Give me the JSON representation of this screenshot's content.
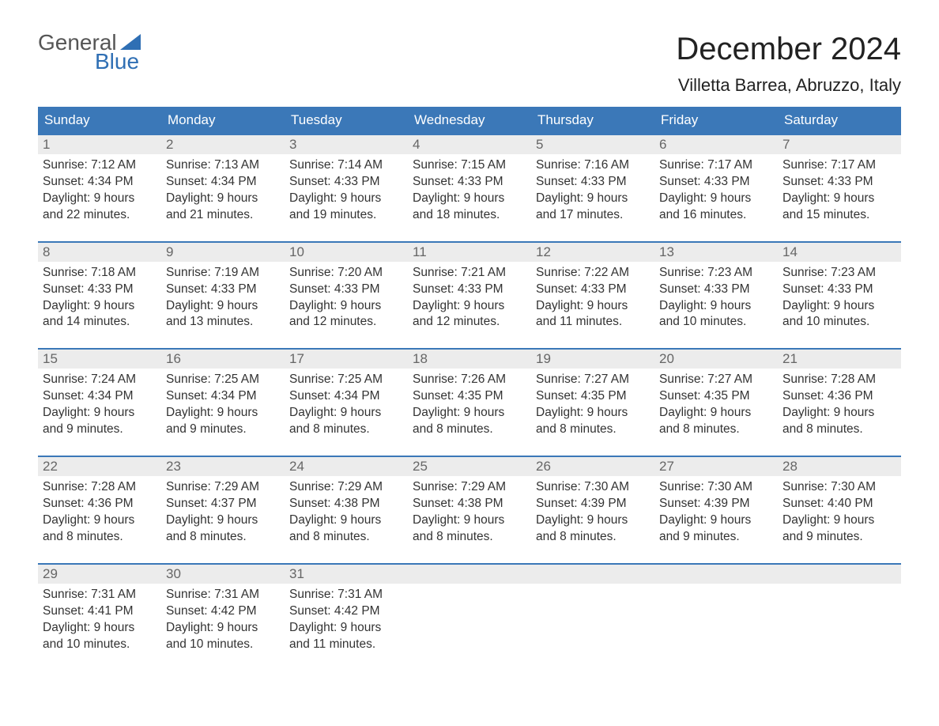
{
  "logo": {
    "line1": "General",
    "line2": "Blue",
    "accent_color": "#2f6fb4",
    "text_color": "#555555"
  },
  "header": {
    "month_title": "December 2024",
    "location": "Villetta Barrea, Abruzzo, Italy"
  },
  "styling": {
    "header_bg": "#3b78b8",
    "header_text": "#ffffff",
    "daynum_bg": "#ececec",
    "daynum_color": "#666666",
    "body_text": "#333333",
    "week_border_color": "#3b78b8",
    "page_bg": "#ffffff",
    "title_fontsize": 40,
    "location_fontsize": 22,
    "dow_fontsize": 17,
    "body_fontsize": 15.5
  },
  "days_of_week": [
    "Sunday",
    "Monday",
    "Tuesday",
    "Wednesday",
    "Thursday",
    "Friday",
    "Saturday"
  ],
  "weeks": [
    [
      {
        "n": "1",
        "sunrise": "Sunrise: 7:12 AM",
        "sunset": "Sunset: 4:34 PM",
        "daylight1": "Daylight: 9 hours",
        "daylight2": "and 22 minutes."
      },
      {
        "n": "2",
        "sunrise": "Sunrise: 7:13 AM",
        "sunset": "Sunset: 4:34 PM",
        "daylight1": "Daylight: 9 hours",
        "daylight2": "and 21 minutes."
      },
      {
        "n": "3",
        "sunrise": "Sunrise: 7:14 AM",
        "sunset": "Sunset: 4:33 PM",
        "daylight1": "Daylight: 9 hours",
        "daylight2": "and 19 minutes."
      },
      {
        "n": "4",
        "sunrise": "Sunrise: 7:15 AM",
        "sunset": "Sunset: 4:33 PM",
        "daylight1": "Daylight: 9 hours",
        "daylight2": "and 18 minutes."
      },
      {
        "n": "5",
        "sunrise": "Sunrise: 7:16 AM",
        "sunset": "Sunset: 4:33 PM",
        "daylight1": "Daylight: 9 hours",
        "daylight2": "and 17 minutes."
      },
      {
        "n": "6",
        "sunrise": "Sunrise: 7:17 AM",
        "sunset": "Sunset: 4:33 PM",
        "daylight1": "Daylight: 9 hours",
        "daylight2": "and 16 minutes."
      },
      {
        "n": "7",
        "sunrise": "Sunrise: 7:17 AM",
        "sunset": "Sunset: 4:33 PM",
        "daylight1": "Daylight: 9 hours",
        "daylight2": "and 15 minutes."
      }
    ],
    [
      {
        "n": "8",
        "sunrise": "Sunrise: 7:18 AM",
        "sunset": "Sunset: 4:33 PM",
        "daylight1": "Daylight: 9 hours",
        "daylight2": "and 14 minutes."
      },
      {
        "n": "9",
        "sunrise": "Sunrise: 7:19 AM",
        "sunset": "Sunset: 4:33 PM",
        "daylight1": "Daylight: 9 hours",
        "daylight2": "and 13 minutes."
      },
      {
        "n": "10",
        "sunrise": "Sunrise: 7:20 AM",
        "sunset": "Sunset: 4:33 PM",
        "daylight1": "Daylight: 9 hours",
        "daylight2": "and 12 minutes."
      },
      {
        "n": "11",
        "sunrise": "Sunrise: 7:21 AM",
        "sunset": "Sunset: 4:33 PM",
        "daylight1": "Daylight: 9 hours",
        "daylight2": "and 12 minutes."
      },
      {
        "n": "12",
        "sunrise": "Sunrise: 7:22 AM",
        "sunset": "Sunset: 4:33 PM",
        "daylight1": "Daylight: 9 hours",
        "daylight2": "and 11 minutes."
      },
      {
        "n": "13",
        "sunrise": "Sunrise: 7:23 AM",
        "sunset": "Sunset: 4:33 PM",
        "daylight1": "Daylight: 9 hours",
        "daylight2": "and 10 minutes."
      },
      {
        "n": "14",
        "sunrise": "Sunrise: 7:23 AM",
        "sunset": "Sunset: 4:33 PM",
        "daylight1": "Daylight: 9 hours",
        "daylight2": "and 10 minutes."
      }
    ],
    [
      {
        "n": "15",
        "sunrise": "Sunrise: 7:24 AM",
        "sunset": "Sunset: 4:34 PM",
        "daylight1": "Daylight: 9 hours",
        "daylight2": "and 9 minutes."
      },
      {
        "n": "16",
        "sunrise": "Sunrise: 7:25 AM",
        "sunset": "Sunset: 4:34 PM",
        "daylight1": "Daylight: 9 hours",
        "daylight2": "and 9 minutes."
      },
      {
        "n": "17",
        "sunrise": "Sunrise: 7:25 AM",
        "sunset": "Sunset: 4:34 PM",
        "daylight1": "Daylight: 9 hours",
        "daylight2": "and 8 minutes."
      },
      {
        "n": "18",
        "sunrise": "Sunrise: 7:26 AM",
        "sunset": "Sunset: 4:35 PM",
        "daylight1": "Daylight: 9 hours",
        "daylight2": "and 8 minutes."
      },
      {
        "n": "19",
        "sunrise": "Sunrise: 7:27 AM",
        "sunset": "Sunset: 4:35 PM",
        "daylight1": "Daylight: 9 hours",
        "daylight2": "and 8 minutes."
      },
      {
        "n": "20",
        "sunrise": "Sunrise: 7:27 AM",
        "sunset": "Sunset: 4:35 PM",
        "daylight1": "Daylight: 9 hours",
        "daylight2": "and 8 minutes."
      },
      {
        "n": "21",
        "sunrise": "Sunrise: 7:28 AM",
        "sunset": "Sunset: 4:36 PM",
        "daylight1": "Daylight: 9 hours",
        "daylight2": "and 8 minutes."
      }
    ],
    [
      {
        "n": "22",
        "sunrise": "Sunrise: 7:28 AM",
        "sunset": "Sunset: 4:36 PM",
        "daylight1": "Daylight: 9 hours",
        "daylight2": "and 8 minutes."
      },
      {
        "n": "23",
        "sunrise": "Sunrise: 7:29 AM",
        "sunset": "Sunset: 4:37 PM",
        "daylight1": "Daylight: 9 hours",
        "daylight2": "and 8 minutes."
      },
      {
        "n": "24",
        "sunrise": "Sunrise: 7:29 AM",
        "sunset": "Sunset: 4:38 PM",
        "daylight1": "Daylight: 9 hours",
        "daylight2": "and 8 minutes."
      },
      {
        "n": "25",
        "sunrise": "Sunrise: 7:29 AM",
        "sunset": "Sunset: 4:38 PM",
        "daylight1": "Daylight: 9 hours",
        "daylight2": "and 8 minutes."
      },
      {
        "n": "26",
        "sunrise": "Sunrise: 7:30 AM",
        "sunset": "Sunset: 4:39 PM",
        "daylight1": "Daylight: 9 hours",
        "daylight2": "and 8 minutes."
      },
      {
        "n": "27",
        "sunrise": "Sunrise: 7:30 AM",
        "sunset": "Sunset: 4:39 PM",
        "daylight1": "Daylight: 9 hours",
        "daylight2": "and 9 minutes."
      },
      {
        "n": "28",
        "sunrise": "Sunrise: 7:30 AM",
        "sunset": "Sunset: 4:40 PM",
        "daylight1": "Daylight: 9 hours",
        "daylight2": "and 9 minutes."
      }
    ],
    [
      {
        "n": "29",
        "sunrise": "Sunrise: 7:31 AM",
        "sunset": "Sunset: 4:41 PM",
        "daylight1": "Daylight: 9 hours",
        "daylight2": "and 10 minutes."
      },
      {
        "n": "30",
        "sunrise": "Sunrise: 7:31 AM",
        "sunset": "Sunset: 4:42 PM",
        "daylight1": "Daylight: 9 hours",
        "daylight2": "and 10 minutes."
      },
      {
        "n": "31",
        "sunrise": "Sunrise: 7:31 AM",
        "sunset": "Sunset: 4:42 PM",
        "daylight1": "Daylight: 9 hours",
        "daylight2": "and 11 minutes."
      },
      null,
      null,
      null,
      null
    ]
  ]
}
